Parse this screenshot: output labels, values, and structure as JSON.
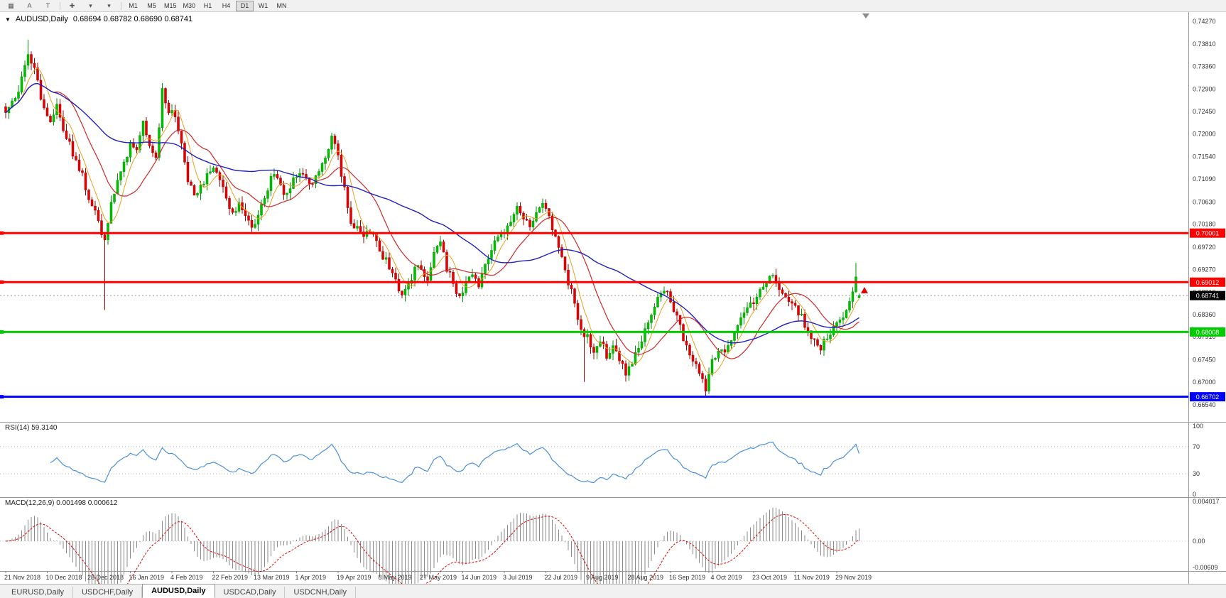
{
  "toolbar": {
    "icons": [
      {
        "name": "tile-windows-icon",
        "glyph": "▦"
      },
      {
        "name": "arrow-tool-icon",
        "glyph": "A"
      },
      {
        "name": "text-tool-icon",
        "glyph": "T"
      },
      {
        "name": "crosshair-icon",
        "glyph": "✚"
      },
      {
        "name": "indicators-dropdown-icon",
        "glyph": "▾"
      },
      {
        "name": "objects-dropdown-icon",
        "glyph": "▾"
      }
    ],
    "timeframes": [
      "M1",
      "M5",
      "M15",
      "M30",
      "H1",
      "H4",
      "D1",
      "W1",
      "MN"
    ],
    "active_timeframe": "D1"
  },
  "chart": {
    "title_symbol": "AUDUSD,Daily",
    "title_ohlc": "0.68694 0.68782 0.68690 0.68741",
    "current_price": "0.68741",
    "y_ticks": [
      "0.74270",
      "0.73810",
      "0.73360",
      "0.72900",
      "0.72450",
      "0.72000",
      "0.71540",
      "0.71090",
      "0.70630",
      "0.70180",
      "0.69720",
      "0.69270",
      "0.68810",
      "0.68360",
      "0.67910",
      "0.67450",
      "0.67000",
      "0.66540"
    ],
    "hlines": [
      {
        "price": 0.70001,
        "label": "0.70001",
        "color": "#ff0000",
        "width": 3
      },
      {
        "price": 0.69012,
        "label": "0.69012",
        "color": "#ff0000",
        "width": 3
      },
      {
        "price": 0.68008,
        "label": "0.68008",
        "color": "#00cc00",
        "width": 3
      },
      {
        "price": 0.66702,
        "label": "0.66702",
        "color": "#0000ff",
        "width": 3
      }
    ],
    "colors": {
      "up_fill": "#00c000",
      "up_stroke": "#009300",
      "down_fill": "#e60000",
      "down_stroke": "#a30000",
      "ma_fast": "#e8a020",
      "ma_mid": "#d02828",
      "ma_slow": "#2020c0",
      "rsi_line": "#4a90d9",
      "macd_bar": "#8a8a8a",
      "macd_signal": "#e00000",
      "current_price_badge": "#000000"
    }
  },
  "indicators": {
    "rsi": {
      "label": "RSI(14)",
      "value": "59.3140",
      "scale": [
        "100",
        "70",
        "30",
        "0"
      ],
      "levels": [
        70,
        30
      ]
    },
    "macd": {
      "label": "MACD(12,26,9)",
      "values": "0.001498 0.000612",
      "scale": [
        "0.004017",
        "0.00",
        "-0.00609"
      ]
    }
  },
  "tabs": [
    {
      "label": "EURUSD,Daily",
      "active": false
    },
    {
      "label": "USDCHF,Daily",
      "active": false
    },
    {
      "label": "AUDUSD,Daily",
      "active": true
    },
    {
      "label": "USDCAD,Daily",
      "active": false
    },
    {
      "label": "USDCNH,Daily",
      "active": false
    }
  ],
  "chart_data": {
    "type": "candlestick",
    "symbol": "AUDUSD",
    "period": "Daily",
    "title": "AUDUSD,Daily",
    "ylim": [
      0.6654,
      0.7427
    ],
    "bars": 268,
    "last_bar": {
      "open": 0.68694,
      "high": 0.68782,
      "low": 0.6869,
      "close": 0.68741
    },
    "key_levels": [
      0.70001,
      0.69012,
      0.68008,
      0.66702
    ],
    "dates": [
      "21 Nov 2018",
      "10 Dec 2018",
      "28 Dec 2018",
      "16 Jan 2019",
      "4 Feb 2019",
      "22 Feb 2019",
      "13 Mar 2019",
      "1 Apr 2019",
      "19 Apr 2019",
      "8 May 2019",
      "27 May 2019",
      "14 Jun 2019",
      "3 Jul 2019",
      "22 Jul 2019",
      "9 Aug 2019",
      "28 Aug 2019",
      "16 Sep 2019",
      "4 Oct 2019",
      "23 Oct 2019",
      "11 Nov 2019",
      "29 Nov 2019"
    ],
    "bars_per_date_label": 13,
    "price_waypoints": [
      [
        0,
        0.725
      ],
      [
        4,
        0.7285
      ],
      [
        7,
        0.7368
      ],
      [
        9,
        0.733
      ],
      [
        12,
        0.7245
      ],
      [
        14,
        0.7225
      ],
      [
        16,
        0.7255
      ],
      [
        18,
        0.7205
      ],
      [
        20,
        0.718
      ],
      [
        22,
        0.7145
      ],
      [
        24,
        0.712
      ],
      [
        26,
        0.7062
      ],
      [
        28,
        0.705
      ],
      [
        30,
        0.7
      ],
      [
        31,
        0.699
      ],
      [
        33,
        0.706
      ],
      [
        36,
        0.7125
      ],
      [
        39,
        0.7175
      ],
      [
        41,
        0.716
      ],
      [
        43,
        0.722
      ],
      [
        45,
        0.718
      ],
      [
        47,
        0.715
      ],
      [
        49,
        0.7285
      ],
      [
        51,
        0.725
      ],
      [
        53,
        0.723
      ],
      [
        55,
        0.718
      ],
      [
        57,
        0.711
      ],
      [
        59,
        0.707
      ],
      [
        61,
        0.709
      ],
      [
        63,
        0.7115
      ],
      [
        65,
        0.713
      ],
      [
        67,
        0.71
      ],
      [
        69,
        0.7075
      ],
      [
        71,
        0.704
      ],
      [
        73,
        0.706
      ],
      [
        75,
        0.704
      ],
      [
        77,
        0.701
      ],
      [
        79,
        0.704
      ],
      [
        81,
        0.707
      ],
      [
        84,
        0.7125
      ],
      [
        86,
        0.709
      ],
      [
        88,
        0.7075
      ],
      [
        90,
        0.711
      ],
      [
        93,
        0.7125
      ],
      [
        95,
        0.71
      ],
      [
        97,
        0.7115
      ],
      [
        99,
        0.714
      ],
      [
        102,
        0.7195
      ],
      [
        104,
        0.715
      ],
      [
        106,
        0.709
      ],
      [
        108,
        0.7025
      ],
      [
        110,
        0.701
      ],
      [
        112,
        0.699
      ],
      [
        114,
        0.7005
      ],
      [
        116,
        0.698
      ],
      [
        118,
        0.6955
      ],
      [
        120,
        0.6935
      ],
      [
        122,
        0.6905
      ],
      [
        124,
        0.687
      ],
      [
        126,
        0.69
      ],
      [
        128,
        0.6925
      ],
      [
        130,
        0.693
      ],
      [
        132,
        0.6905
      ],
      [
        134,
        0.6965
      ],
      [
        136,
        0.699
      ],
      [
        138,
        0.693
      ],
      [
        140,
        0.69
      ],
      [
        142,
        0.6868
      ],
      [
        144,
        0.69
      ],
      [
        146,
        0.692
      ],
      [
        148,
        0.6895
      ],
      [
        150,
        0.693
      ],
      [
        152,
        0.6965
      ],
      [
        154,
        0.7
      ],
      [
        156,
        0.7005
      ],
      [
        158,
        0.703
      ],
      [
        160,
        0.705
      ],
      [
        162,
        0.703
      ],
      [
        164,
        0.701
      ],
      [
        166,
        0.704
      ],
      [
        168,
        0.706
      ],
      [
        170,
        0.703
      ],
      [
        172,
        0.699
      ],
      [
        174,
        0.696
      ],
      [
        176,
        0.69
      ],
      [
        178,
        0.6865
      ],
      [
        180,
        0.68
      ],
      [
        182,
        0.679
      ],
      [
        184,
        0.676
      ],
      [
        186,
        0.6785
      ],
      [
        188,
        0.6755
      ],
      [
        190,
        0.6775
      ],
      [
        192,
        0.6745
      ],
      [
        194,
        0.672
      ],
      [
        196,
        0.674
      ],
      [
        198,
        0.677
      ],
      [
        200,
        0.68
      ],
      [
        202,
        0.683
      ],
      [
        204,
        0.6865
      ],
      [
        206,
        0.689
      ],
      [
        208,
        0.686
      ],
      [
        210,
        0.683
      ],
      [
        212,
        0.679
      ],
      [
        214,
        0.676
      ],
      [
        216,
        0.673
      ],
      [
        218,
        0.67
      ],
      [
        219,
        0.6685
      ],
      [
        221,
        0.674
      ],
      [
        223,
        0.677
      ],
      [
        225,
        0.6755
      ],
      [
        227,
        0.6785
      ],
      [
        229,
        0.6815
      ],
      [
        231,
        0.6835
      ],
      [
        233,
        0.6855
      ],
      [
        235,
        0.687
      ],
      [
        237,
        0.6895
      ],
      [
        239,
        0.6915
      ],
      [
        241,
        0.6905
      ],
      [
        243,
        0.688
      ],
      [
        245,
        0.686
      ],
      [
        247,
        0.685
      ],
      [
        249,
        0.683
      ],
      [
        251,
        0.6805
      ],
      [
        253,
        0.6785
      ],
      [
        255,
        0.677
      ],
      [
        257,
        0.679
      ],
      [
        259,
        0.681
      ],
      [
        261,
        0.6825
      ],
      [
        263,
        0.6845
      ],
      [
        265,
        0.688
      ],
      [
        266,
        0.6905
      ],
      [
        267,
        0.68741
      ]
    ],
    "wick_overrides": [
      [
        7,
        "high",
        0.739
      ],
      [
        31,
        "low",
        0.6845
      ],
      [
        181,
        "low",
        0.67
      ],
      [
        219,
        "low",
        0.667
      ],
      [
        266,
        "high",
        0.694
      ]
    ],
    "indicators": {
      "rsi_period": 14,
      "rsi_current": 59.314,
      "macd_fast": 12,
      "macd_slow": 26,
      "macd_signal": 9,
      "macd_current": 0.001498,
      "macd_signal_current": 0.000612,
      "ma_periods": [
        6,
        16,
        48
      ]
    }
  }
}
